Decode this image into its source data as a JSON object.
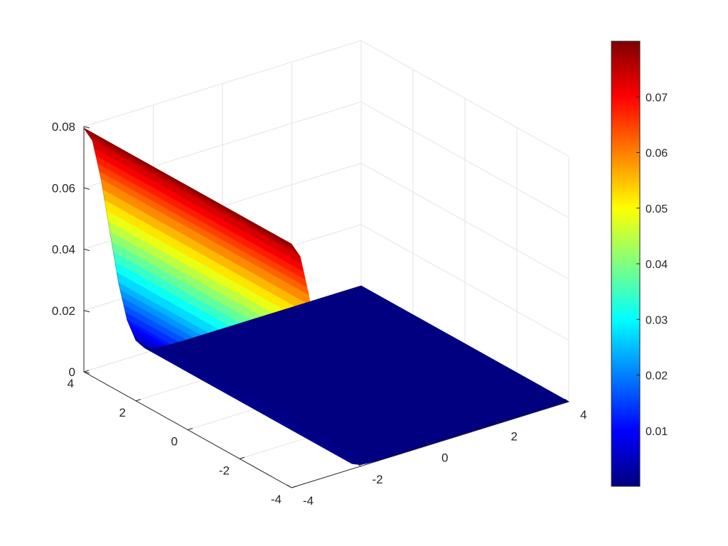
{
  "chart_data": {
    "type": "surface",
    "title": "",
    "xlabel": "",
    "ylabel": "",
    "zlabel": "",
    "colormap": "jet",
    "grid": true,
    "legend": "none",
    "colorbar": {
      "placement": "right",
      "range": [
        0.0,
        0.08
      ],
      "tick_values": [
        0.01,
        0.02,
        0.03,
        0.04,
        0.05,
        0.06,
        0.07
      ],
      "tick_labels": [
        "0.01",
        "0.02",
        "0.03",
        "0.04",
        "0.05",
        "0.06",
        "0.07"
      ]
    },
    "x_axis": {
      "range": [
        -4,
        4
      ],
      "tick_values": [
        -4,
        -2,
        0,
        2,
        4
      ],
      "tick_labels": [
        "-4",
        "-2",
        "0",
        "2",
        "4"
      ]
    },
    "y_axis": {
      "range": [
        -4,
        4
      ],
      "tick_values": [
        -4,
        -2,
        0,
        2,
        4
      ],
      "tick_labels": [
        "-4",
        "-2",
        "0",
        "2",
        "4"
      ]
    },
    "z_axis": {
      "range": [
        0,
        0.08
      ],
      "tick_values": [
        0,
        0.02,
        0.04,
        0.06,
        0.08
      ],
      "tick_labels": [
        "0",
        "0.02",
        "0.04",
        "0.06",
        "0.08"
      ]
    },
    "surface": {
      "description_of_shape": "ridge constant along y, gaussian profile across x",
      "peak_x": -4,
      "profile_x": [
        -4,
        -3.75,
        -3.5,
        -3.25,
        -3,
        -2.75,
        -2.5,
        -2.25,
        -2,
        -1.5,
        -1,
        0,
        1,
        2,
        4
      ],
      "profile_z": [
        0.0795,
        0.0745,
        0.061,
        0.043,
        0.0255,
        0.0125,
        0.005,
        0.0017,
        0.0005,
        0.0001,
        0.0,
        0.0,
        0.0,
        0.0,
        0.0
      ]
    }
  }
}
